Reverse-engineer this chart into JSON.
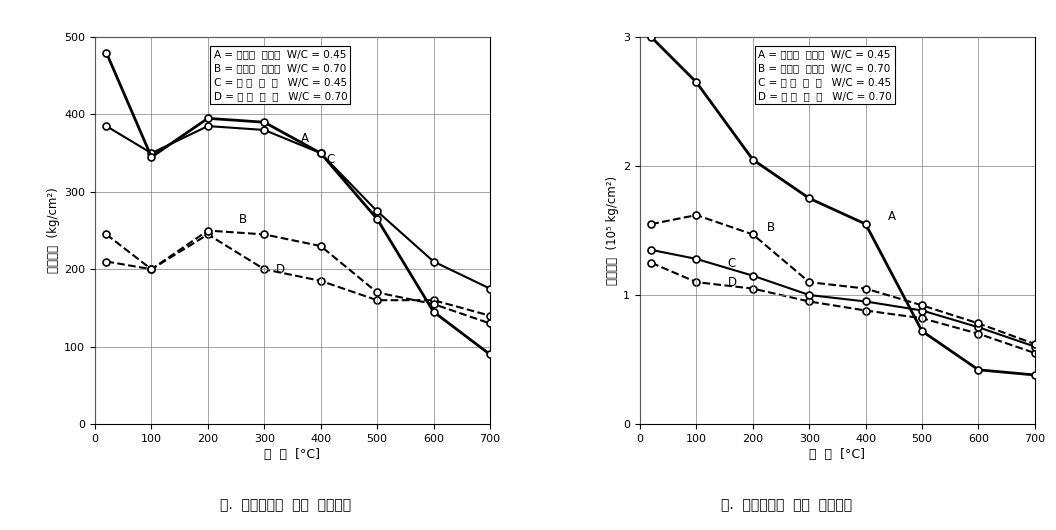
{
  "temp_x": [
    20,
    100,
    200,
    300,
    400,
    500,
    600,
    700
  ],
  "comp_A": [
    480,
    345,
    395,
    390,
    350,
    265,
    145,
    90
  ],
  "comp_B": [
    245,
    200,
    250,
    245,
    230,
    170,
    155,
    130
  ],
  "comp_C": [
    385,
    350,
    385,
    380,
    350,
    275,
    210,
    175
  ],
  "comp_D": [
    210,
    200,
    245,
    200,
    185,
    160,
    160,
    140
  ],
  "elastic_A": [
    3.0,
    2.65,
    2.05,
    1.75,
    1.55,
    0.72,
    0.42,
    0.38
  ],
  "elastic_B": [
    1.55,
    1.62,
    1.47,
    1.1,
    1.05,
    0.92,
    0.78,
    0.62
  ],
  "elastic_C": [
    1.35,
    1.28,
    1.15,
    1.0,
    0.95,
    0.88,
    0.75,
    0.6
  ],
  "elastic_D": [
    1.25,
    1.1,
    1.05,
    0.95,
    0.88,
    0.82,
    0.7,
    0.55
  ],
  "legend_lines": [
    "A = 강모래  강자갈  W/C = 0.45",
    "B = 강모래  강자갈  W/C = 0.70",
    "C = 팭 잔  월  암   W/C = 0.45",
    "D = 팭 잔  월  암   W/C = 0.70"
  ],
  "xlabel": "온  도  [°C]",
  "ylabel_left": "압축강도  (kg/cm²)",
  "ylabel_right": "탄성계수  (10⁵ kg/cm²)",
  "caption_left": "가.  온도이력에  따른  압충강도",
  "caption_right": "나.  온도이력에  따른  탄성계수",
  "comp_ylim": [
    0,
    500
  ],
  "elastic_ylim": [
    0,
    3
  ],
  "xlim": [
    0,
    700
  ]
}
